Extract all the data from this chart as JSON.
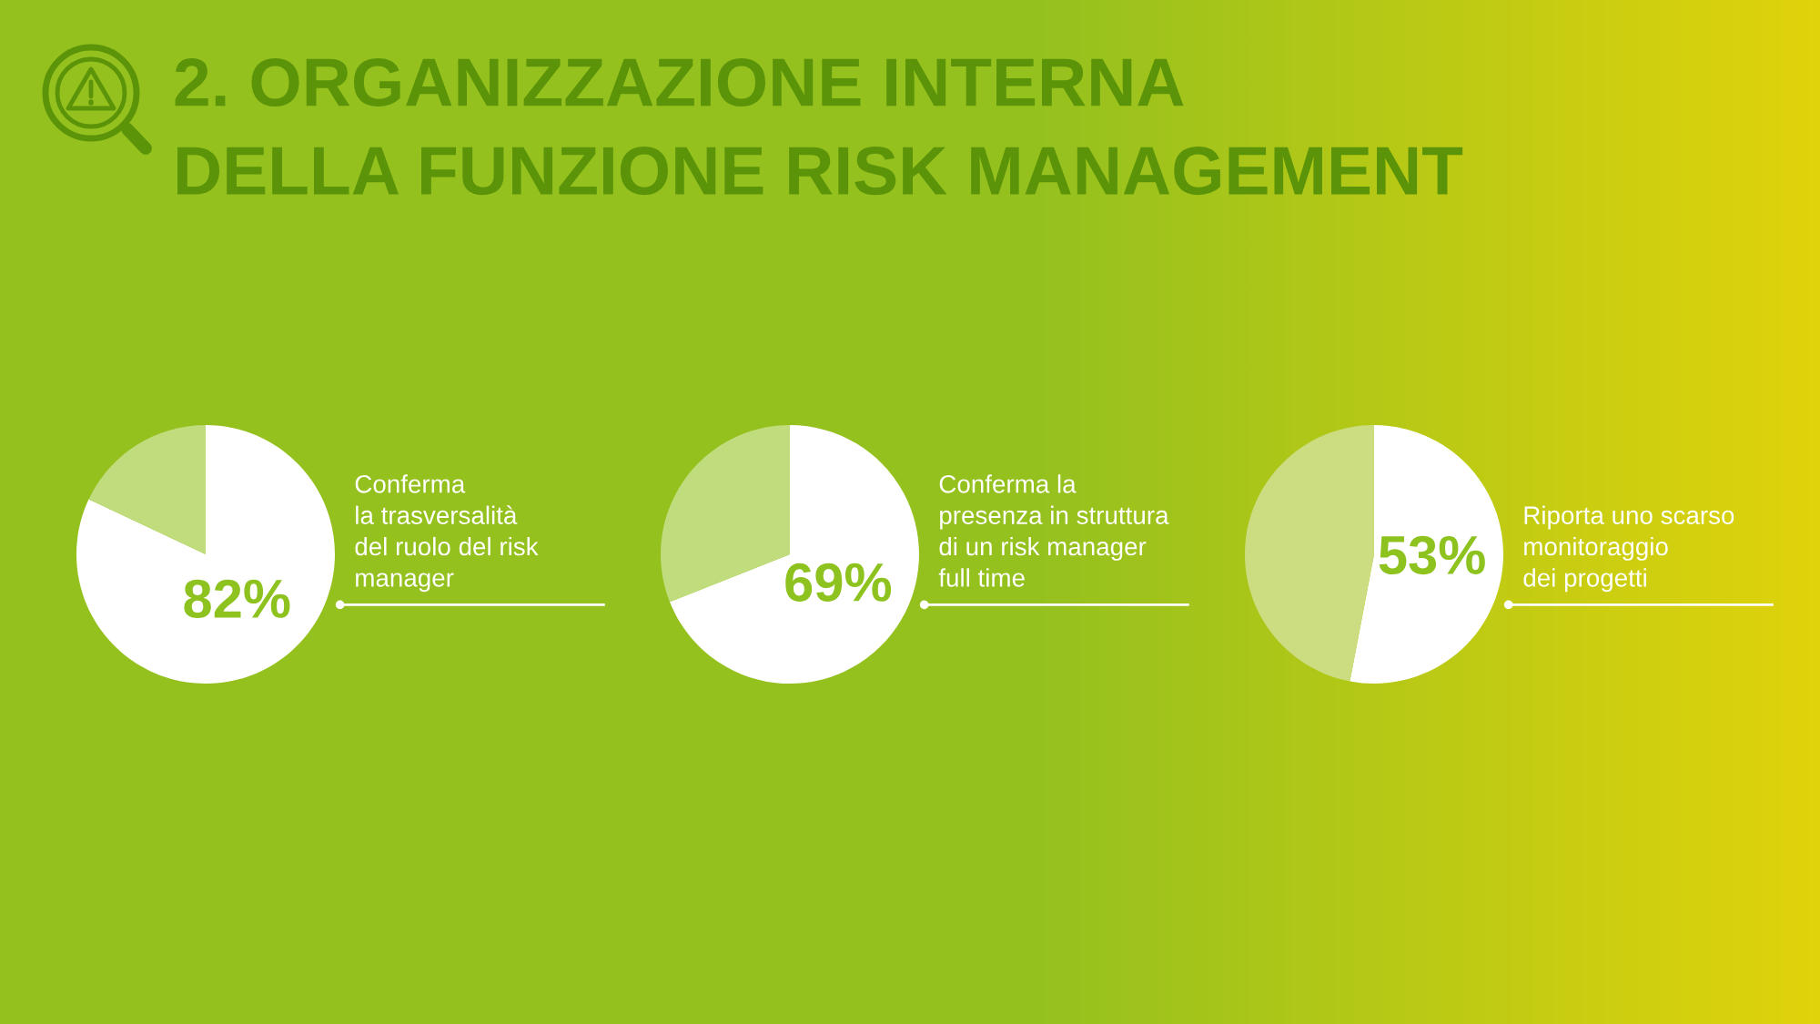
{
  "chart_data": [
    {
      "type": "other",
      "title": "2. ORGANIZZAZIONE INTERNA\nDELLA FUNZIONE RISK MANAGEMENT"
    },
    {
      "type": "pie",
      "categories": [
        null,
        null
      ],
      "values": [
        82,
        18
      ],
      "colors": [
        "#ffffff",
        "#c0dc7c"
      ],
      "value_labels": [
        "82%",
        null
      ],
      "annotations": [
        "Conferma\nla trasversalità\ndel ruolo del risk\nmanager"
      ]
    },
    {
      "type": "pie",
      "categories": [
        null,
        null
      ],
      "values": [
        69,
        31
      ],
      "colors": [
        "#ffffff",
        "#c0dc7c"
      ],
      "value_labels": [
        "69%",
        null
      ],
      "annotations": [
        "Conferma la\npresenza in struttura\ndi un risk manager\nfull time"
      ]
    },
    {
      "type": "pie",
      "categories": [
        null,
        null
      ],
      "values": [
        53,
        47
      ],
      "colors": [
        "#ffffff",
        "#cbdd80"
      ],
      "value_labels": [
        "53%",
        null
      ],
      "annotations": [
        "Riporta uno scarso\nmonitoraggio\ndei progetti"
      ]
    }
  ]
}
